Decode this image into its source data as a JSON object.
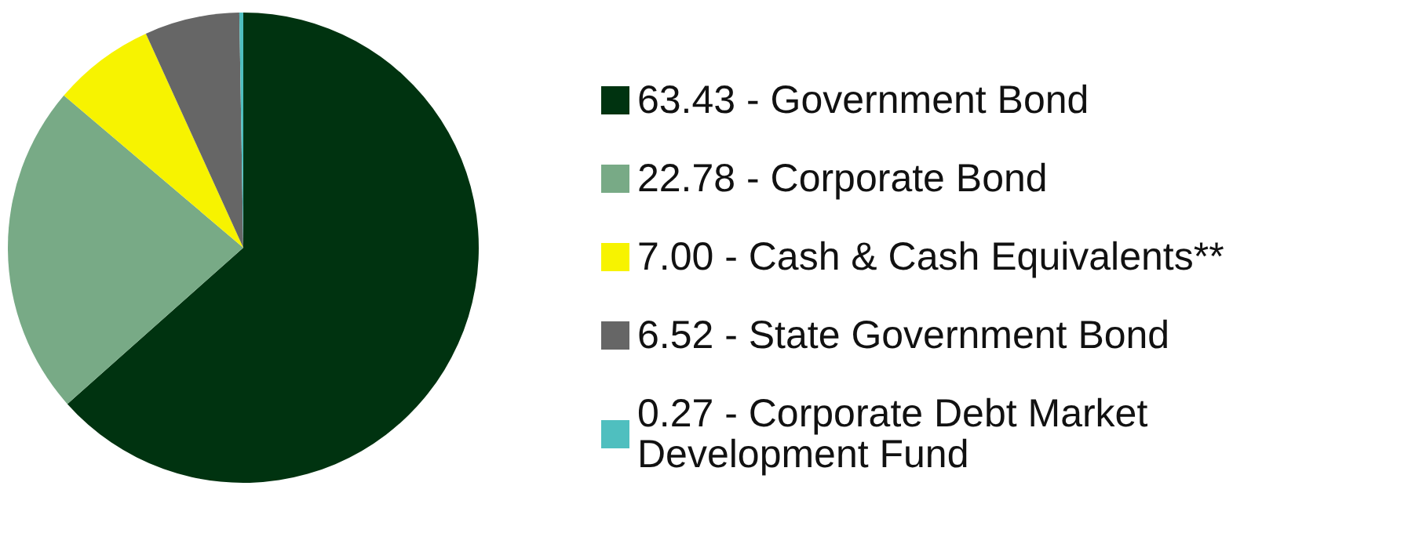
{
  "chart_data": {
    "type": "pie",
    "categories": [
      "63.43 - Government Bond",
      "22.78 - Corporate Bond",
      "7.00 - Cash & Cash Equivalents**",
      "6.52 - State Government Bond",
      "0.27 - Corporate Debt Market Development Fund"
    ],
    "values": [
      63.43,
      22.78,
      7.0,
      6.52,
      0.27
    ],
    "colors": [
      "#003310",
      "#78aa86",
      "#f7f300",
      "#666666",
      "#4fbfbf"
    ],
    "legend": "right"
  }
}
